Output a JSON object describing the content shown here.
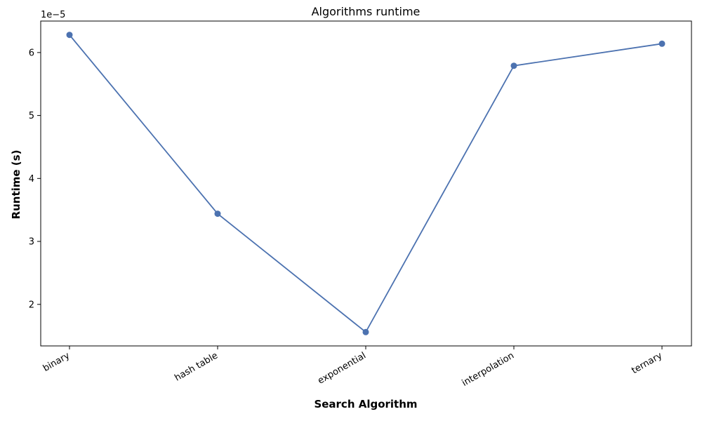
{
  "chart_data": {
    "type": "line",
    "title": "Algorithms  runtime",
    "xlabel": "Search Algorithm",
    "ylabel": "Runtime (s)",
    "y_offset_label": "1e−5",
    "categories": [
      "binary",
      "hash table",
      "exponential",
      "interpolation",
      "ternary"
    ],
    "series": [
      {
        "values": [
          6.28e-05,
          3.44e-05,
          1.56e-05,
          5.79e-05,
          6.14e-05
        ]
      }
    ],
    "y_scale_factor": 1e-05,
    "y_ticks": [
      2,
      3,
      4,
      5,
      6
    ],
    "y_tick_labels": [
      "2",
      "3",
      "4",
      "5",
      "6"
    ],
    "ylim": [
      1.34,
      6.5
    ],
    "grid": false,
    "line_color": "#4c72b0",
    "marker": "circle"
  }
}
